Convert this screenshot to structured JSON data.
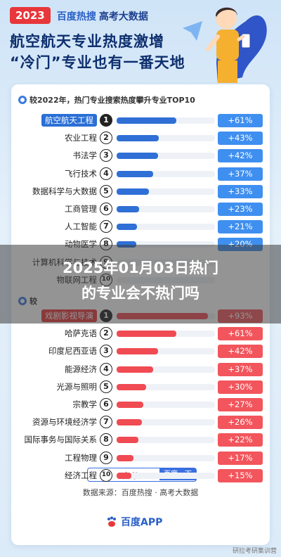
{
  "header": {
    "year": "2023",
    "brand": "百度热搜",
    "subtitle": "高考大数据",
    "headline_line1": "航空航天专业热度激增",
    "headline_line2": "“冷门”专业也有一番天地"
  },
  "overlay": {
    "line1": "2025年01月03日热门",
    "line2": "的专业会不热门吗"
  },
  "colors": {
    "blue_bar": "#2f6fd6",
    "blue_pct": "#3f8ff0",
    "red_bar": "#f04a52",
    "red_pct": "#f2555c",
    "highlight_blue": "#2a6fd6",
    "highlight_red": "#e8373a"
  },
  "chart_data": [
    {
      "type": "bar",
      "title": "较2022年，热门专业搜索热度攀升专业TOP10",
      "categories": [
        "航空航天工程",
        "农业工程",
        "书法学",
        "飞行技术",
        "数据科学与大数据",
        "工商管理",
        "人工智能",
        "动物医学",
        "计算机科学与技术",
        "物联网工程"
      ],
      "ranks": [
        "1",
        "2",
        "3",
        "4",
        "5",
        "6",
        "7",
        "8",
        "9",
        "10"
      ],
      "values": [
        61,
        43,
        42,
        37,
        33,
        23,
        21,
        20,
        0,
        0
      ],
      "labels": [
        "+61%",
        "+43%",
        "+42%",
        "+37%",
        "+33%",
        "+23%",
        "+21%",
        "+20%",
        "",
        ""
      ]
    },
    {
      "type": "bar",
      "title": "较",
      "categories": [
        "戏剧影视导演",
        "哈萨克语",
        "印度尼西亚语",
        "能源经济",
        "光源与照明",
        "宗教学",
        "资源与环境经济学",
        "国际事务与国际关系",
        "工程物理",
        "经济工程"
      ],
      "ranks": [
        "1",
        "2",
        "3",
        "4",
        "5",
        "6",
        "7",
        "8",
        "9",
        "10"
      ],
      "values": [
        93,
        61,
        42,
        37,
        30,
        27,
        26,
        22,
        17,
        15
      ],
      "labels": [
        "+93%",
        "+61%",
        "+42%",
        "+37%",
        "+30%",
        "+27%",
        "+26%",
        "+22%",
        "+17%",
        "+15%"
      ]
    }
  ],
  "search": {
    "query": "高考",
    "button": "百度一下"
  },
  "footer": {
    "source": "数据来源：百度热搜 · 高考大数据",
    "app": "百度APP",
    "watermark": "研拉考研集训营"
  }
}
